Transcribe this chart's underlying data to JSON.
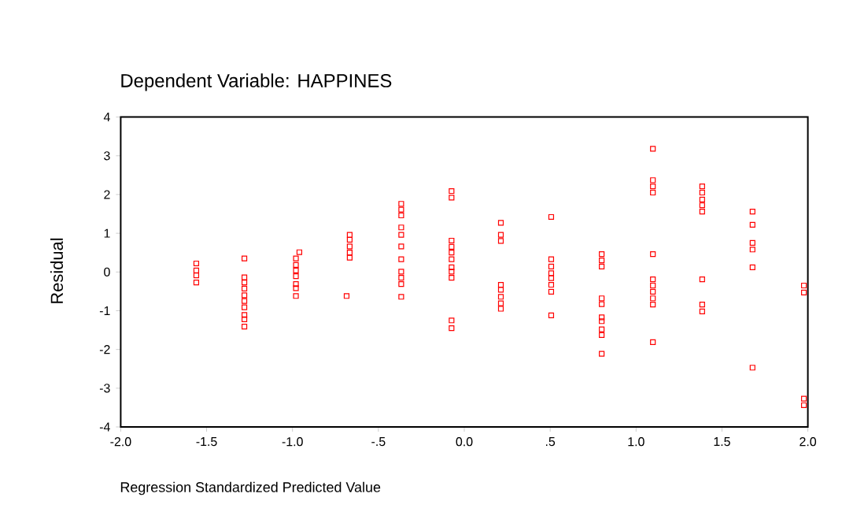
{
  "chart_data": {
    "type": "scatter",
    "title": "Dependent Variable: HAPPINES",
    "xlabel": "Regression Standardized Predicted Value",
    "ylabel": "Residual",
    "marker": "square",
    "grid": false,
    "xlim": [
      -2,
      2
    ],
    "ylim": [
      -4,
      4
    ],
    "xticks": [
      {
        "value": -2,
        "label": "-2.0"
      },
      {
        "value": -1.5,
        "label": "-1.5"
      },
      {
        "value": -1,
        "label": "-1.0"
      },
      {
        "value": -0.5,
        "label": "-.5"
      },
      {
        "value": 0,
        "label": "0.0"
      },
      {
        "value": 0.5,
        "label": ".5"
      },
      {
        "value": 1,
        "label": "1.0"
      },
      {
        "value": 1.5,
        "label": "1.5"
      },
      {
        "value": 2,
        "label": "2.0"
      }
    ],
    "yticks": [
      -4,
      -3,
      -2,
      -1,
      0,
      1,
      2,
      3,
      4
    ],
    "series": [
      {
        "color": "#ff0000",
        "x": [
          -1.56,
          -1.56,
          -1.56,
          -1.56,
          -1.28,
          -1.28,
          -1.28,
          -1.28,
          -1.28,
          -1.28,
          -1.28,
          -1.28,
          -1.28,
          -1.28,
          -0.98,
          -0.98,
          -0.98,
          -0.98,
          -0.98,
          -0.98,
          -0.98,
          -0.96,
          -0.685,
          -0.667,
          -0.667,
          -0.667,
          -0.667,
          -0.667,
          -0.367,
          -0.367,
          -0.367,
          -0.367,
          -0.367,
          -0.367,
          -0.367,
          -0.367,
          -0.367,
          -0.367,
          -0.367,
          -0.074,
          -0.074,
          -0.074,
          -0.074,
          -0.074,
          -0.074,
          -0.074,
          -0.074,
          -0.074,
          -0.074,
          -0.074,
          0.213,
          0.213,
          0.213,
          0.213,
          0.213,
          0.213,
          0.213,
          0.213,
          0.506,
          0.506,
          0.506,
          0.506,
          0.506,
          0.506,
          0.506,
          0.506,
          0.8,
          0.8,
          0.8,
          0.8,
          0.8,
          0.8,
          0.8,
          0.8,
          0.8,
          0.8,
          1.098,
          1.098,
          1.098,
          1.098,
          1.098,
          1.098,
          1.098,
          1.098,
          1.098,
          1.098,
          1.098,
          1.385,
          1.385,
          1.385,
          1.385,
          1.385,
          1.385,
          1.385,
          1.385,
          1.678,
          1.678,
          1.678,
          1.678,
          1.678,
          1.678,
          1.977,
          1.977,
          1.977,
          1.977
        ],
        "values": [
          0.22,
          0.04,
          -0.09,
          -0.27,
          0.35,
          -0.14,
          -0.27,
          -0.43,
          -0.6,
          -0.75,
          -0.91,
          -1.11,
          -1.22,
          -1.41,
          0.35,
          0.18,
          0.04,
          -0.11,
          -0.31,
          -0.42,
          -0.62,
          0.51,
          -0.62,
          0.96,
          0.83,
          0.66,
          0.5,
          0.37,
          1.76,
          1.61,
          1.46,
          1.15,
          0.96,
          0.66,
          0.33,
          0.01,
          -0.15,
          -0.31,
          -0.64,
          2.09,
          1.92,
          0.81,
          0.65,
          0.5,
          0.33,
          0.12,
          0.01,
          -0.15,
          -1.25,
          -1.45,
          1.27,
          0.96,
          0.8,
          -0.33,
          -0.46,
          -0.64,
          -0.81,
          -0.95,
          1.42,
          0.33,
          0.14,
          -0.03,
          -0.16,
          -0.33,
          -0.51,
          -1.12,
          0.46,
          0.3,
          0.14,
          -0.68,
          -0.83,
          -1.17,
          -1.27,
          -1.48,
          -1.63,
          -2.11,
          3.18,
          2.37,
          2.21,
          2.05,
          0.46,
          -0.19,
          -0.35,
          -0.51,
          -0.68,
          -0.84,
          -1.81,
          2.21,
          2.05,
          1.87,
          1.72,
          1.56,
          -0.19,
          -0.84,
          -1.02,
          1.56,
          1.22,
          0.75,
          0.58,
          0.12,
          -2.47,
          -0.35,
          -0.53,
          -3.27,
          -3.44
        ]
      }
    ]
  }
}
